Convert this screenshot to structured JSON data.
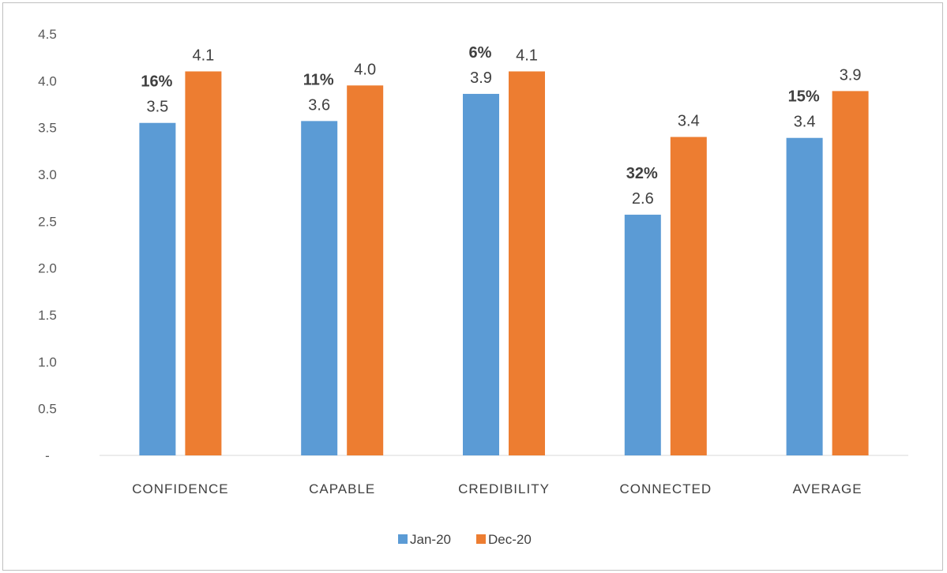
{
  "chart_data": {
    "type": "bar",
    "categories": [
      "CONFIDENCE",
      "CAPABLE",
      "CREDIBILITY",
      "CONNECTED",
      "AVERAGE"
    ],
    "series": [
      {
        "name": "Jan-20",
        "values": [
          3.55,
          3.57,
          3.86,
          2.57,
          3.39
        ],
        "labels": [
          "3.5",
          "3.6",
          "3.9",
          "2.6",
          "3.4"
        ],
        "color": "#5B9BD5"
      },
      {
        "name": "Dec-20",
        "values": [
          4.1,
          3.95,
          4.1,
          3.4,
          3.89
        ],
        "labels": [
          "4.1",
          "4.0",
          "4.1",
          "3.4",
          "3.9"
        ],
        "color": "#ED7D31"
      }
    ],
    "annotations": [
      "16%",
      "11%",
      "6%",
      "32%",
      "15%"
    ],
    "ylim": [
      0,
      4.5
    ],
    "yticks": [
      "-",
      "0.5",
      "1.0",
      "1.5",
      "2.0",
      "2.5",
      "3.0",
      "3.5",
      "4.0",
      "4.5"
    ],
    "grid": false,
    "legend": "bottom"
  }
}
